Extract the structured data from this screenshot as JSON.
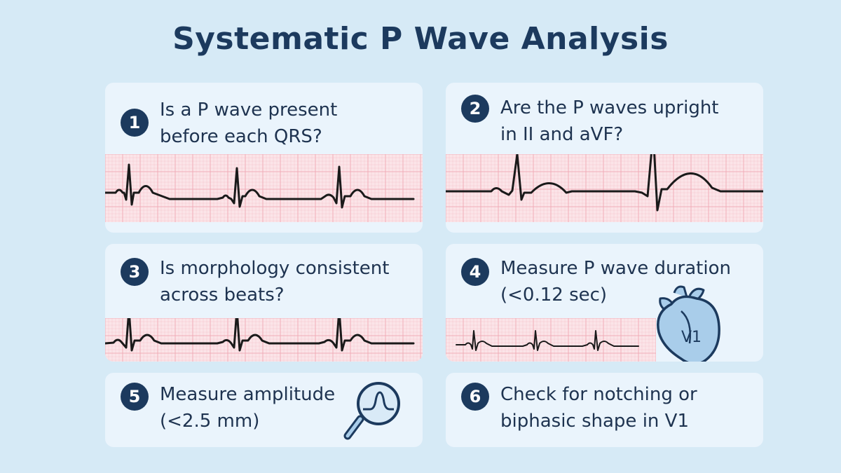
{
  "title": "Systematic P Wave Analysis",
  "steps": [
    {
      "number": "1",
      "lines": [
        "Is a P wave present",
        "before each QRS?"
      ]
    },
    {
      "number": "2",
      "lines": [
        "Are the P waves upright",
        "in II and aVF?"
      ]
    },
    {
      "number": "3",
      "lines": [
        "Is morphology consistent",
        "across beats?"
      ]
    },
    {
      "number": "4",
      "lines": [
        "Measure P wave duration",
        "(<0.12 sec)"
      ]
    },
    {
      "number": "5",
      "lines": [
        "Measure amplitude",
        "(<2.5 mm)"
      ]
    },
    {
      "number": "6",
      "lines": [
        "Check for notching or",
        "biphasic shape in V1"
      ]
    }
  ],
  "heart_label": "V1",
  "icons": {
    "magnifier": "magnifier-icon",
    "heart": "heart-icon"
  },
  "colors": {
    "background": "#d6eaf6",
    "card": "#eaf4fc",
    "title": "#1c3a5e",
    "badge": "#1c3a5e",
    "ecg_grid": "#f0a9b4",
    "ecg_paper": "#fbe4e8",
    "ecg_trace": "#1a1a1a",
    "accent": "#a9cdea"
  }
}
